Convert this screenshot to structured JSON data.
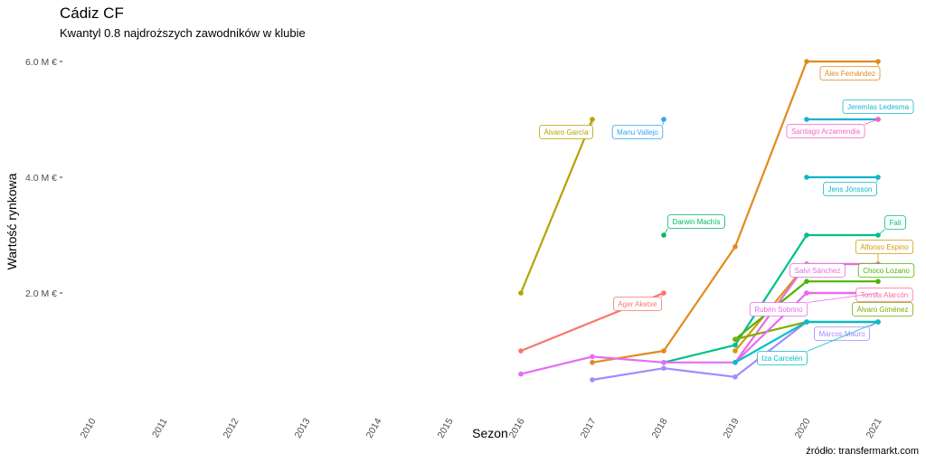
{
  "chart_data": {
    "type": "line",
    "title": "Cádiz CF",
    "subtitle": "Kwantyl 0.8 najdroższych zawodników w klubie",
    "xlabel": "Sezon",
    "ylabel": "Wartość rynkowa",
    "caption": "źródło: transfermarkt.com",
    "x_ticks": [
      "2010",
      "2011",
      "2012",
      "2013",
      "2014",
      "2015",
      "2016",
      "2017",
      "2018",
      "2019",
      "2020",
      "2021"
    ],
    "y_ticks": [
      "2.0 M €",
      "4.0 M €",
      "6.0 M €"
    ],
    "y_tick_values": [
      2.0,
      4.0,
      6.0
    ],
    "xlim": [
      2010,
      2021
    ],
    "ylim": [
      0,
      6.5
    ],
    "grid": false,
    "legend": "none",
    "series": [
      {
        "name": "Álex Fernández",
        "color": "#E08B1E",
        "x": [
          2017,
          2018,
          2019,
          2020,
          2021
        ],
        "y": [
          0.8,
          1.0,
          2.8,
          6.0,
          6.0
        ]
      },
      {
        "name": "Jeremías Ledesma",
        "color": "#18B4D8",
        "x": [
          2020,
          2021
        ],
        "y": [
          5.0,
          5.0
        ]
      },
      {
        "name": "Santiago Arzamendia",
        "color": "#F563C9",
        "x": [
          2021
        ],
        "y": [
          5.0
        ]
      },
      {
        "name": "Jens Jönsson",
        "color": "#10B4CB",
        "x": [
          2020,
          2021
        ],
        "y": [
          4.0,
          4.0
        ]
      },
      {
        "name": "Álvaro García",
        "color": "#B5A300",
        "x": [
          2016,
          2017
        ],
        "y": [
          2.0,
          5.0
        ]
      },
      {
        "name": "Manu Vallejo",
        "color": "#2FA7F0",
        "x": [
          2018
        ],
        "y": [
          5.0
        ]
      },
      {
        "name": "Darwin Machís",
        "color": "#00B85C",
        "x": [
          2018
        ],
        "y": [
          3.0
        ]
      },
      {
        "name": "Fali",
        "color": "#00C08B",
        "x": [
          2018,
          2019,
          2020,
          2021
        ],
        "y": [
          0.8,
          1.1,
          3.0,
          3.0
        ]
      },
      {
        "name": "Alfonso Espino",
        "color": "#D49B0A",
        "x": [
          2019,
          2020,
          2021
        ],
        "y": [
          1.0,
          2.5,
          2.5
        ]
      },
      {
        "name": "Salvi Sánchez",
        "color": "#E86BE0",
        "x": [
          2019,
          2020,
          2021
        ],
        "y": [
          0.8,
          2.5,
          2.5
        ]
      },
      {
        "name": "Choco Lozano",
        "color": "#4CB400",
        "x": [
          2019,
          2020,
          2021
        ],
        "y": [
          1.2,
          2.2,
          2.2
        ]
      },
      {
        "name": "Tomás Alarcón",
        "color": "#FF6C91",
        "x": [
          2020,
          2021
        ],
        "y": [
          2.0,
          2.0
        ]
      },
      {
        "name": "Álvaro Giménez",
        "color": "#7CAE00",
        "x": [
          2019,
          2020,
          2021
        ],
        "y": [
          1.2,
          1.5,
          1.5
        ]
      },
      {
        "name": "Rubén Sobrino",
        "color": "#E76BF3",
        "x": [
          2016,
          2017,
          2018,
          2019,
          2020,
          2021
        ],
        "y": [
          0.6,
          0.9,
          0.8,
          0.8,
          2.0,
          2.0
        ]
      },
      {
        "name": "Marcos Mauro",
        "color": "#A58AFF",
        "x": [
          2017,
          2018,
          2019,
          2020,
          2021
        ],
        "y": [
          0.5,
          0.7,
          0.55,
          1.5,
          1.5
        ]
      },
      {
        "name": "Iza Carcelén",
        "color": "#00BFC4",
        "x": [
          2019,
          2020,
          2021
        ],
        "y": [
          0.8,
          1.5,
          1.5
        ]
      },
      {
        "name": "Ager Aketxe",
        "color": "#F8766D",
        "x": [
          2016,
          2018
        ],
        "y": [
          1.0,
          2.0
        ]
      }
    ]
  }
}
